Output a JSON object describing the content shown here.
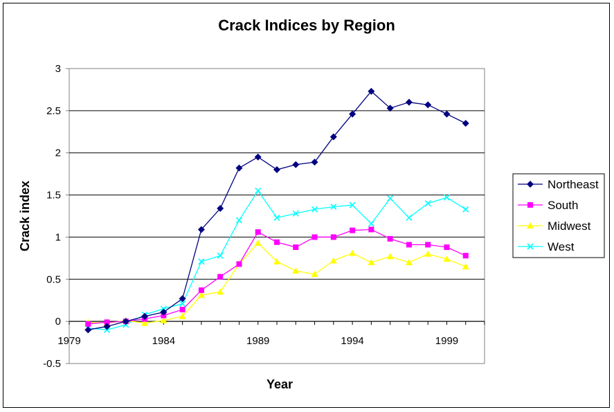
{
  "chart_data": {
    "type": "line",
    "title": "Crack Indices by Region",
    "xlabel": "Year",
    "ylabel": "Crack index",
    "xlim": [
      1979,
      2001
    ],
    "ylim": [
      -0.5,
      3
    ],
    "x_ticks": [
      "1979",
      "1984",
      "1989",
      "1994",
      "1999"
    ],
    "y_ticks": [
      "-0.5",
      "0",
      "0.5",
      "1",
      "1.5",
      "2",
      "2.5",
      "3"
    ],
    "grid": "horizontal",
    "legend_position": "right",
    "x": [
      1980,
      1981,
      1982,
      1983,
      1984,
      1985,
      1986,
      1987,
      1988,
      1989,
      1990,
      1991,
      1992,
      1993,
      1994,
      1995,
      1996,
      1997,
      1998,
      1999,
      2000
    ],
    "series": [
      {
        "name": "Northeast",
        "color": "#000080",
        "marker": "diamond",
        "values": [
          -0.1,
          -0.06,
          0.0,
          0.06,
          0.11,
          0.27,
          1.09,
          1.34,
          1.82,
          1.95,
          1.8,
          1.86,
          1.89,
          2.19,
          2.46,
          2.73,
          2.53,
          2.6,
          2.57,
          2.46,
          2.35
        ]
      },
      {
        "name": "South",
        "color": "#FF00FF",
        "marker": "square",
        "values": [
          -0.03,
          -0.01,
          0.0,
          0.03,
          0.07,
          0.14,
          0.37,
          0.53,
          0.68,
          1.06,
          0.94,
          0.88,
          1.0,
          1.0,
          1.08,
          1.09,
          0.98,
          0.91,
          0.91,
          0.88,
          0.78
        ]
      },
      {
        "name": "Midwest",
        "color": "#FFFF00",
        "marker": "triangle",
        "values": [
          -0.01,
          -0.02,
          0.01,
          -0.02,
          0.01,
          0.06,
          0.31,
          0.35,
          0.68,
          0.93,
          0.71,
          0.6,
          0.56,
          0.72,
          0.81,
          0.7,
          0.77,
          0.7,
          0.8,
          0.74,
          0.65
        ]
      },
      {
        "name": "West",
        "color": "#00FFFF",
        "marker": "x",
        "values": [
          -0.08,
          -0.1,
          -0.04,
          0.08,
          0.15,
          0.21,
          0.71,
          0.78,
          1.2,
          1.55,
          1.23,
          1.28,
          1.33,
          1.36,
          1.38,
          1.16,
          1.46,
          1.23,
          1.4,
          1.47,
          1.33
        ]
      }
    ]
  }
}
